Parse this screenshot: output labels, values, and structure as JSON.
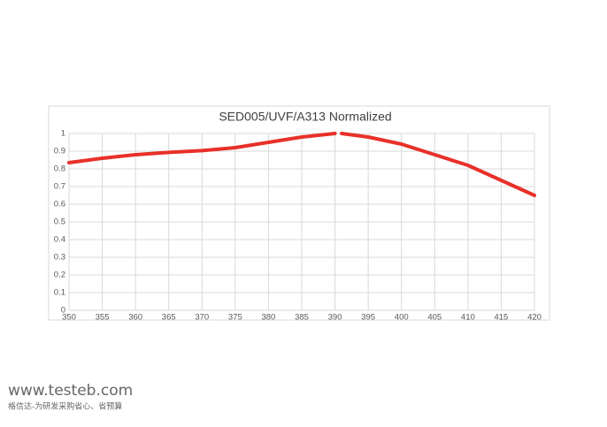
{
  "chart_data": {
    "type": "line",
    "title": "SED005/UVF/A313 Normalized",
    "x": [
      350,
      355,
      360,
      365,
      370,
      375,
      380,
      385,
      390,
      390.5,
      391,
      395,
      400,
      405,
      410,
      415,
      420
    ],
    "series": [
      {
        "color": "#e8302a",
        "values": [
          0.835,
          0.86,
          0.88,
          0.893,
          0.903,
          0.92,
          0.95,
          0.98,
          1.0,
          null,
          1.0,
          0.98,
          0.94,
          0.88,
          0.82,
          0.735,
          0.65
        ]
      }
    ],
    "xlim": [
      350,
      420
    ],
    "xticks": [
      350,
      355,
      360,
      365,
      370,
      375,
      380,
      385,
      390,
      395,
      400,
      405,
      410,
      415,
      420
    ],
    "ylim": [
      0,
      1
    ],
    "yticks": [
      0,
      0.1,
      0.2,
      0.3,
      0.4,
      0.5,
      0.6,
      0.7,
      0.8,
      0.9,
      1
    ],
    "grid": true
  },
  "watermark": {
    "url": "www.testeb.com",
    "tagline": "格信达-为研发采购省心、省预算"
  }
}
